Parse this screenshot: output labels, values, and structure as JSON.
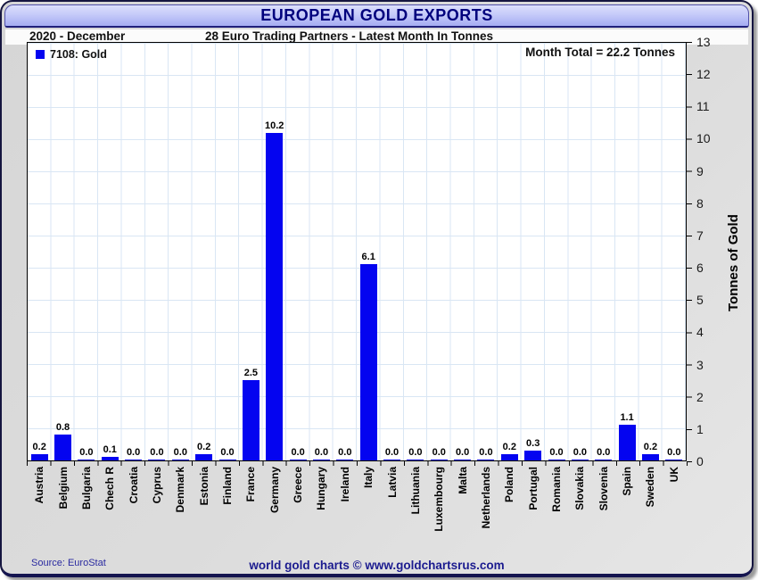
{
  "header": {
    "title": "EUROPEAN GOLD EXPORTS"
  },
  "subtitle": {
    "period": "2020 - December",
    "description": "28 Euro Trading Partners - Latest Month In Tonnes"
  },
  "legend": {
    "label": "7108: Gold"
  },
  "annotation": {
    "month_total": "Month Total = 22.2 Tonnes"
  },
  "axes": {
    "y_label": "Tonnes of Gold",
    "y_ticks": [
      0,
      1,
      2,
      3,
      4,
      5,
      6,
      7,
      8,
      9,
      10,
      11,
      12,
      13
    ]
  },
  "footer": {
    "source": "Source: EuroStat",
    "credit": "world gold charts © www.goldchartsrus.com"
  },
  "colors": {
    "bar": "#0404f0",
    "title_text": "#00007d",
    "title_bar_gradient_top": "#dcdffc",
    "title_bar_gradient_bottom": "#a5acf2",
    "gridline": "#d9e6f4",
    "outer_background": "#d9d9d9",
    "footer_text": "#1b1b8f"
  },
  "chart_data": {
    "type": "bar",
    "title": "EUROPEAN GOLD EXPORTS",
    "subtitle": "28 Euro Trading Partners - Latest Month In Tonnes",
    "period": "2020 - December",
    "series_name": "7108: Gold",
    "month_total_tonnes": 22.2,
    "categories": [
      "Austria",
      "Belgium",
      "Bulgaria",
      "Chech R",
      "Croatia",
      "Cyprus",
      "Denmark",
      "Estonia",
      "Finland",
      "France",
      "Germany",
      "Greece",
      "Hungary",
      "Ireland",
      "Italy",
      "Latvia",
      "Lithuania",
      "Luxembourg",
      "Malta",
      "Netherlands",
      "Poland",
      "Portugal",
      "Romania",
      "Slovakia",
      "Slovenia",
      "Spain",
      "Sweden",
      "UK"
    ],
    "values": [
      0.2,
      0.8,
      0.0,
      0.1,
      0.0,
      0.0,
      0.0,
      0.2,
      0.0,
      2.5,
      10.2,
      0.0,
      0.0,
      0.0,
      6.1,
      0.0,
      0.0,
      0.0,
      0.0,
      0.0,
      0.2,
      0.3,
      0.0,
      0.0,
      0.0,
      1.1,
      0.2,
      0.0
    ],
    "xlabel": "",
    "ylabel": "Tonnes of Gold",
    "ylim": [
      0,
      13
    ],
    "grid": true,
    "legend_position": "top-left",
    "value_labels": true
  }
}
